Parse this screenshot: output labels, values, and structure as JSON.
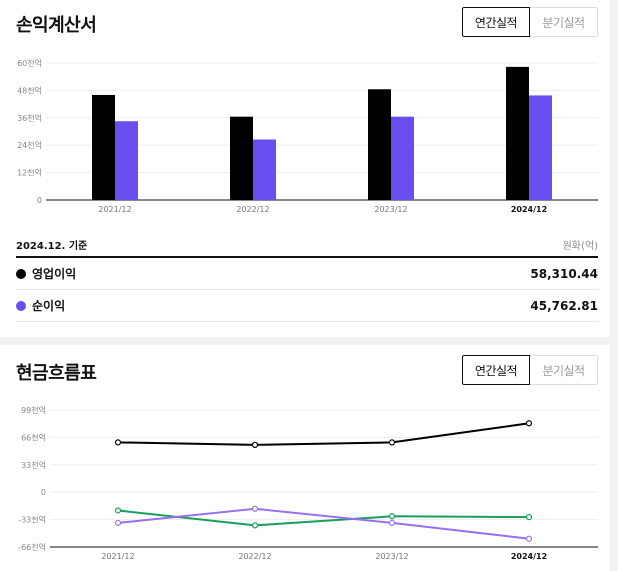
{
  "income": {
    "title": "손익계산서",
    "toggle": {
      "annual": "연간실적",
      "quarterly": "분기실적"
    },
    "basis": "2024.12. 기준",
    "unit": "원화(억)",
    "rows": [
      {
        "label": "영업이익",
        "value": "58,310.44",
        "color": "#000000"
      },
      {
        "label": "순이익",
        "value": "45,762.81",
        "color": "#6a4ef0"
      }
    ]
  },
  "cashflow": {
    "title": "현금흐름표",
    "toggle": {
      "annual": "연간실적",
      "quarterly": "분기실적"
    }
  },
  "chart_data": [
    {
      "type": "bar",
      "categories": [
        "2021/12",
        "2022/12",
        "2023/12",
        "2024/12"
      ],
      "series": [
        {
          "values": [
            46,
            36.5,
            48.5,
            58.3
          ],
          "color": "#000000"
        },
        {
          "values": [
            34.5,
            26.5,
            36.5,
            45.8
          ],
          "color": "#6a4ef0"
        }
      ],
      "ylim": [
        0,
        60
      ],
      "yticks": [
        "0",
        "12천억",
        "24천억",
        "36천억",
        "48천억",
        "60천억"
      ],
      "ytick_values": [
        0,
        12,
        24,
        36,
        48,
        60
      ],
      "grid": true
    },
    {
      "type": "line",
      "categories": [
        "2021/12",
        "2022/12",
        "2023/12",
        "2024/12"
      ],
      "series": [
        {
          "values": [
            60,
            57,
            60,
            83
          ],
          "color": "#000000"
        },
        {
          "values": [
            -22,
            -40,
            -29,
            -30
          ],
          "color": "#1a9e5c"
        },
        {
          "values": [
            -37,
            -20,
            -37,
            -56
          ],
          "color": "#9a6ef0"
        }
      ],
      "ylim": [
        -66,
        99
      ],
      "yticks": [
        "-66천억",
        "-33천억",
        "0",
        "33천억",
        "66천억",
        "99천억"
      ],
      "ytick_values": [
        -66,
        -33,
        0,
        33,
        66,
        99
      ],
      "grid": true
    }
  ]
}
